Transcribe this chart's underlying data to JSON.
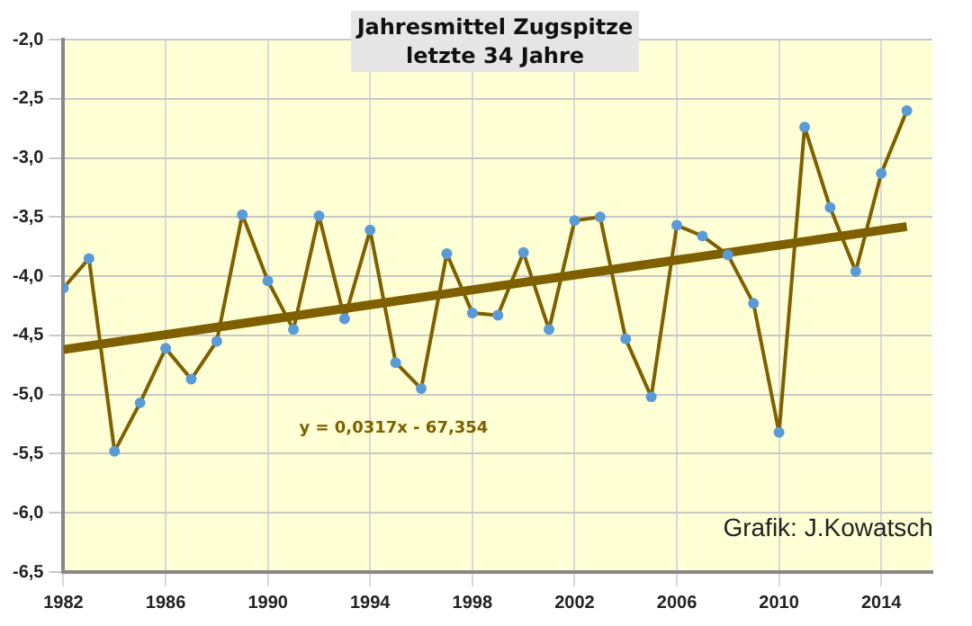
{
  "chart_data": {
    "type": "line",
    "title": "Jahresmittel Zugspitze",
    "subtitle": "letzte 34 Jahre",
    "x": [
      1982,
      1983,
      1984,
      1985,
      1986,
      1987,
      1988,
      1989,
      1990,
      1991,
      1992,
      1993,
      1994,
      1995,
      1996,
      1997,
      1998,
      1999,
      2000,
      2001,
      2002,
      2003,
      2004,
      2005,
      2006,
      2007,
      2008,
      2009,
      2010,
      2011,
      2012,
      2013,
      2014,
      2015
    ],
    "series": [
      {
        "color": "#7f6000",
        "marker": "circle",
        "values": [
          -4.1,
          -3.85,
          -5.48,
          -5.07,
          -4.61,
          -4.87,
          -4.55,
          -3.48,
          -4.04,
          -4.45,
          -3.49,
          -4.36,
          -3.61,
          -4.73,
          -4.95,
          -3.81,
          -4.31,
          -4.33,
          -3.8,
          -4.45,
          -3.53,
          -3.5,
          -4.53,
          -5.02,
          -3.57,
          -3.66,
          -3.82,
          -4.23,
          -5.32,
          -2.74,
          -3.42,
          -3.96,
          -3.13,
          -2.6
        ]
      },
      {
        "type": "line",
        "color": "#7f6000",
        "marker": "none",
        "x": [
          1982,
          2015
        ],
        "values": [
          -4.62,
          -3.58
        ]
      }
    ],
    "xlim": [
      1982,
      2016
    ],
    "xticks": [
      1982,
      1986,
      1990,
      1994,
      1998,
      2002,
      2006,
      2010,
      2014
    ],
    "ylim": [
      -6.5,
      -2.0
    ],
    "yticks": [
      {
        "value": -6.5,
        "label": "-6,5"
      },
      {
        "value": -6.0,
        "label": "-6,0"
      },
      {
        "value": -5.5,
        "label": "-5,5"
      },
      {
        "value": -5.0,
        "label": "-5,0"
      },
      {
        "value": -4.5,
        "label": "-4,5"
      },
      {
        "value": -4.0,
        "label": "-4,0"
      },
      {
        "value": -3.5,
        "label": "-3,5"
      },
      {
        "value": -3.0,
        "label": "-3,0"
      },
      {
        "value": -2.5,
        "label": "-2,5"
      },
      {
        "value": -2.0,
        "label": "-2,0"
      }
    ],
    "grid": true,
    "legend": false,
    "annotations": [
      "y = 0,0317x - 67,354",
      "Grafik: J.Kowatsch"
    ]
  }
}
